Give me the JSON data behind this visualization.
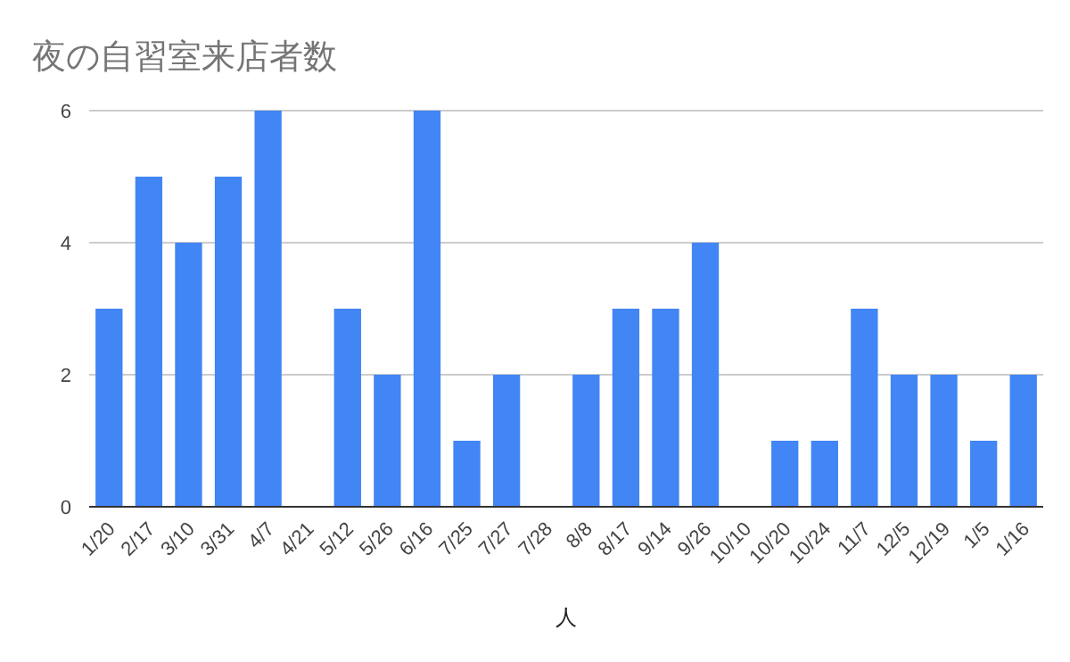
{
  "chart_data": {
    "type": "bar",
    "title": "夜の自習室来店者数",
    "xlabel": "人",
    "categories": [
      "1/20",
      "2/17",
      "3/10",
      "3/31",
      "4/7",
      "4/21",
      "5/12",
      "5/26",
      "6/16",
      "7/25",
      "7/27",
      "7/28",
      "8/8",
      "8/17",
      "9/14",
      "9/26",
      "10/10",
      "10/20",
      "10/24",
      "11/7",
      "12/5",
      "12/19",
      "1/5",
      "1/16"
    ],
    "values": [
      3,
      5,
      4,
      5,
      6,
      0,
      3,
      2,
      6,
      1,
      2,
      0,
      2,
      3,
      3,
      4,
      0,
      1,
      1,
      3,
      2,
      2,
      1,
      2
    ],
    "color": "#4285f4",
    "ylim": [
      0,
      6
    ],
    "yticks": [
      0,
      2,
      4,
      6
    ],
    "grid": "y"
  }
}
